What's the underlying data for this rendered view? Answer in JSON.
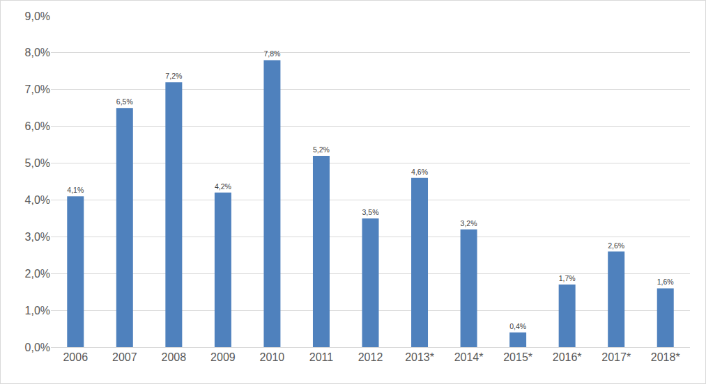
{
  "chart_data": {
    "type": "bar",
    "categories": [
      "2006",
      "2007",
      "2008",
      "2009",
      "2010",
      "2011",
      "2012",
      "2013*",
      "2014*",
      "2015*",
      "2016*",
      "2017*",
      "2018*"
    ],
    "values": [
      4.1,
      6.5,
      7.2,
      4.2,
      7.8,
      5.2,
      3.5,
      4.6,
      3.2,
      0.4,
      1.7,
      2.6,
      1.6
    ],
    "value_labels": [
      "4,1%",
      "6,5%",
      "7,2%",
      "4,2%",
      "7,8%",
      "5,2%",
      "3,5%",
      "4,6%",
      "3,2%",
      "0,4%",
      "1,7%",
      "2,6%",
      "1,6%"
    ],
    "color": "#4f81bd",
    "ylim": [
      0,
      9
    ],
    "yticks": [
      {
        "value": 0,
        "label": "0,0%"
      },
      {
        "value": 1,
        "label": "1,0%"
      },
      {
        "value": 2,
        "label": "2,0%"
      },
      {
        "value": 3,
        "label": "3,0%"
      },
      {
        "value": 4,
        "label": "4,0%"
      },
      {
        "value": 5,
        "label": "5,0%"
      },
      {
        "value": 6,
        "label": "6,0%"
      },
      {
        "value": 7,
        "label": "7,0%"
      },
      {
        "value": 8,
        "label": "8,0%"
      },
      {
        "value": 9,
        "label": "9,0%"
      }
    ],
    "grid": true,
    "data_labels": true
  }
}
